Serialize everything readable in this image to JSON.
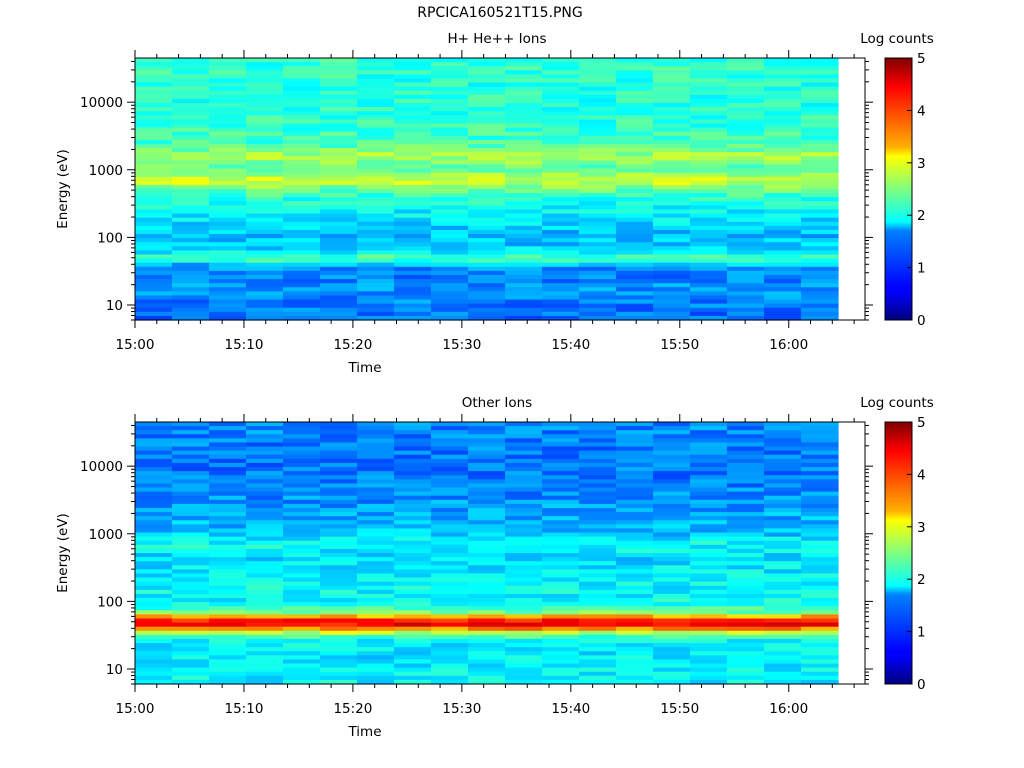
{
  "figure": {
    "title": "RPCICA160521T15.PNG"
  },
  "chart_data": [
    {
      "type": "heatmap",
      "title": "H+ He++ Ions",
      "xlabel": "Time",
      "ylabel": "Energy (eV)",
      "xlim": [
        "15:00",
        "16:07"
      ],
      "x_ticks": [
        "15:00",
        "15:10",
        "15:20",
        "15:30",
        "15:40",
        "15:50",
        "16:00"
      ],
      "y_scale": "log",
      "ylim": [
        6,
        45000
      ],
      "y_ticks": [
        10,
        100,
        1000,
        10000
      ],
      "y_tick_labels": [
        "10",
        "100",
        "1000",
        "10000"
      ],
      "colorbar": {
        "label": "Log counts",
        "range": [
          0,
          5
        ],
        "ticks": [
          "0",
          "1",
          "2",
          "3",
          "4",
          "5"
        ],
        "colormap": "jet"
      },
      "time_columns": 19,
      "energy_profile": [
        {
          "energy": 8,
          "log_counts": 1.2
        },
        {
          "energy": 12,
          "log_counts": 1.3
        },
        {
          "energy": 18,
          "log_counts": 1.35
        },
        {
          "energy": 28,
          "log_counts": 1.25
        },
        {
          "energy": 38,
          "log_counts": 1.4
        },
        {
          "energy": 48,
          "log_counts": 2.4
        },
        {
          "energy": 60,
          "log_counts": 1.8
        },
        {
          "energy": 80,
          "log_counts": 1.6
        },
        {
          "energy": 110,
          "log_counts": 1.55
        },
        {
          "energy": 150,
          "log_counts": 1.7
        },
        {
          "energy": 250,
          "log_counts": 1.85
        },
        {
          "energy": 400,
          "log_counts": 2.1
        },
        {
          "energy": 550,
          "log_counts": 2.5
        },
        {
          "energy": 700,
          "log_counts": 3.0
        },
        {
          "energy": 1000,
          "log_counts": 2.3
        },
        {
          "energy": 1600,
          "log_counts": 2.7
        },
        {
          "energy": 2500,
          "log_counts": 2.2
        },
        {
          "energy": 5000,
          "log_counts": 2.1
        },
        {
          "energy": 12000,
          "log_counts": 2.05
        },
        {
          "energy": 40000,
          "log_counts": 2.1
        }
      ]
    },
    {
      "type": "heatmap",
      "title": "Other Ions",
      "xlabel": "Time",
      "ylabel": "Energy (eV)",
      "xlim": [
        "15:00",
        "16:07"
      ],
      "x_ticks": [
        "15:00",
        "15:10",
        "15:20",
        "15:30",
        "15:40",
        "15:50",
        "16:00"
      ],
      "y_scale": "log",
      "ylim": [
        6,
        45000
      ],
      "y_ticks": [
        10,
        100,
        1000,
        10000
      ],
      "y_tick_labels": [
        "10",
        "100",
        "1000",
        "10000"
      ],
      "colorbar": {
        "label": "Log counts",
        "range": [
          0,
          5
        ],
        "ticks": [
          "0",
          "1",
          "2",
          "3",
          "4",
          "5"
        ],
        "colormap": "jet"
      },
      "time_columns": 19,
      "energy_profile": [
        {
          "energy": 8,
          "log_counts": 1.85
        },
        {
          "energy": 12,
          "log_counts": 1.8
        },
        {
          "energy": 18,
          "log_counts": 1.75
        },
        {
          "energy": 28,
          "log_counts": 1.9
        },
        {
          "energy": 36,
          "log_counts": 3.0
        },
        {
          "energy": 42,
          "log_counts": 4.2
        },
        {
          "energy": 48,
          "log_counts": 4.5
        },
        {
          "energy": 56,
          "log_counts": 4.0
        },
        {
          "energy": 70,
          "log_counts": 2.3
        },
        {
          "energy": 100,
          "log_counts": 1.9
        },
        {
          "energy": 200,
          "log_counts": 1.85
        },
        {
          "energy": 450,
          "log_counts": 1.7
        },
        {
          "energy": 700,
          "log_counts": 1.95
        },
        {
          "energy": 1000,
          "log_counts": 1.6
        },
        {
          "energy": 2000,
          "log_counts": 1.45
        },
        {
          "energy": 4000,
          "log_counts": 1.3
        },
        {
          "energy": 10000,
          "log_counts": 1.2
        },
        {
          "energy": 20000,
          "log_counts": 1.25
        },
        {
          "energy": 40000,
          "log_counts": 1.3
        }
      ]
    }
  ]
}
